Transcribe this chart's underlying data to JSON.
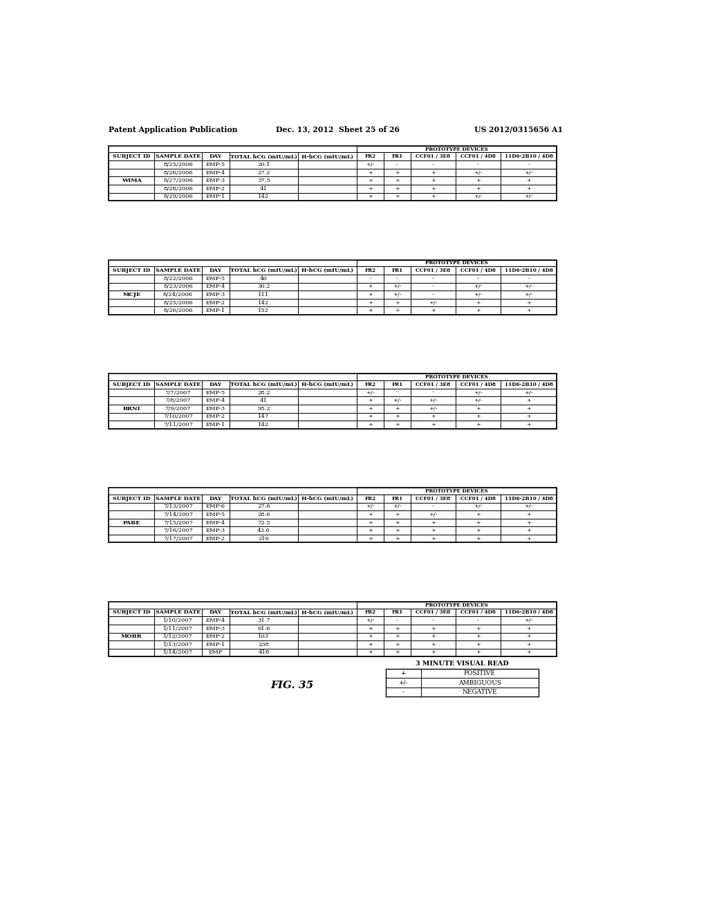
{
  "header_line1": "Patent Application Publication",
  "header_line2": "Dec. 13, 2012  Sheet 25 of 26",
  "header_line3": "US 2012/0315656 A1",
  "col_headers": [
    "SUBJECT ID",
    "SAMPLE DATE",
    "DAY",
    "TOTAL hCG (mIU/mL)",
    "H-hCG (mIU/mL)",
    "FR2",
    "FR1",
    "CCF01 / 3E8",
    "CCF01 / 4D8",
    "11D6-2B10 / 4D8"
  ],
  "prototype_label": "PROTOTYPE DEVICES",
  "tables": [
    {
      "subject": "WIMA",
      "rows": [
        [
          "8/25/2006",
          "EMP-5",
          "20.1",
          "",
          "+/-",
          "-",
          "-",
          "-",
          "-"
        ],
        [
          "8/26/2006",
          "EMP-4",
          "27.2",
          "",
          "+",
          "+",
          "+",
          "+/-",
          "+/-"
        ],
        [
          "8/27/2006",
          "EMP-3",
          "37.5",
          "",
          "+",
          "+",
          "+",
          "+",
          "+"
        ],
        [
          "8/28/2006",
          "EMP-2",
          "41",
          "",
          "+",
          "+",
          "+",
          "+",
          "+"
        ],
        [
          "8/29/2006",
          "EMP-1",
          "142",
          "",
          "+",
          "+",
          "+",
          "+/-",
          "+/-"
        ]
      ]
    },
    {
      "subject": "MCJE",
      "rows": [
        [
          "8/22/2006",
          "EMP-5",
          "40",
          "",
          "-",
          "-",
          "-",
          "-",
          "-"
        ],
        [
          "8/23/2006",
          "EMP-4",
          "30.2",
          "",
          "+",
          "+/-",
          "-",
          "+/-",
          "+/-"
        ],
        [
          "8/24/2006",
          "EMP-3",
          "111",
          "",
          "+",
          "+/-",
          "-",
          "+/-",
          "+/-"
        ],
        [
          "8/25/2006",
          "EMP-2",
          "142",
          "",
          "+",
          "+",
          "+/-",
          "+",
          "+"
        ],
        [
          "8/26/2006",
          "EMP-1",
          "152",
          "",
          "+",
          "+",
          "+",
          "+",
          "+"
        ]
      ]
    },
    {
      "subject": "BRNI",
      "rows": [
        [
          "7/7/2007",
          "EMP-5",
          "28.2",
          "",
          "+/-",
          "-",
          "-",
          "+/-",
          "+/-"
        ],
        [
          "7/8/2007",
          "EMP-4",
          "41",
          "",
          "+",
          "+/-",
          "+/-",
          "+/-",
          "+"
        ],
        [
          "7/9/2007",
          "EMP-3",
          "95.2",
          "",
          "+",
          "+",
          "+/-",
          "+",
          "+"
        ],
        [
          "7/10/2007",
          "EMP-2",
          "147",
          "",
          "+",
          "+",
          "+",
          "+",
          "+"
        ],
        [
          "7/11/2007",
          "EMP-1",
          "142",
          "",
          "+",
          "+",
          "+",
          "+",
          "+"
        ]
      ]
    },
    {
      "subject": "PABE",
      "rows": [
        [
          "7/13/2007",
          "EMP-6",
          "27.6",
          "",
          "+/-",
          "+/-",
          "-",
          "+/-",
          "+/-"
        ],
        [
          "7/14/2007",
          "EMP-5",
          "28.6",
          "",
          "+",
          "+",
          "+/-",
          "+",
          "+"
        ],
        [
          "7/15/2007",
          "EMP-4",
          "72.5",
          "",
          "+",
          "+",
          "+",
          "+",
          "+"
        ],
        [
          "7/16/2007",
          "EMP-3",
          "43.6",
          "",
          "+",
          "+",
          "+",
          "+",
          "+"
        ],
        [
          "7/17/2007",
          "EMP-2",
          "216",
          "",
          "+",
          "+",
          "+",
          "+",
          "+"
        ]
      ]
    },
    {
      "subject": "MOBR",
      "rows": [
        [
          "1/10/2007",
          "EMP-4",
          "31.7",
          "",
          "+/-",
          "-",
          "-",
          "-",
          "+/-"
        ],
        [
          "1/11/2007",
          "EMP-3",
          "61.6",
          "",
          "+",
          "+",
          "+",
          "+",
          "+"
        ],
        [
          "1/12/2007",
          "EMP-2",
          "103",
          "",
          "+",
          "+",
          "+",
          "+",
          "+"
        ],
        [
          "1/13/2007",
          "EMP-1",
          "238",
          "",
          "+",
          "+",
          "+",
          "+",
          "+"
        ],
        [
          "1/14/2007",
          "EMP",
          "418",
          "",
          "+",
          "+",
          "+",
          "+",
          "+"
        ]
      ]
    }
  ],
  "legend": {
    "title": "3 MINUTE VISUAL READ",
    "items": [
      [
        "+",
        "POSITIVE"
      ],
      [
        "+/-",
        "AMBIGUOUS"
      ],
      [
        "-",
        "NEGATIVE"
      ]
    ]
  },
  "fig_label": "FIG. 35",
  "bg_color": "#ffffff",
  "text_color": "#000000"
}
